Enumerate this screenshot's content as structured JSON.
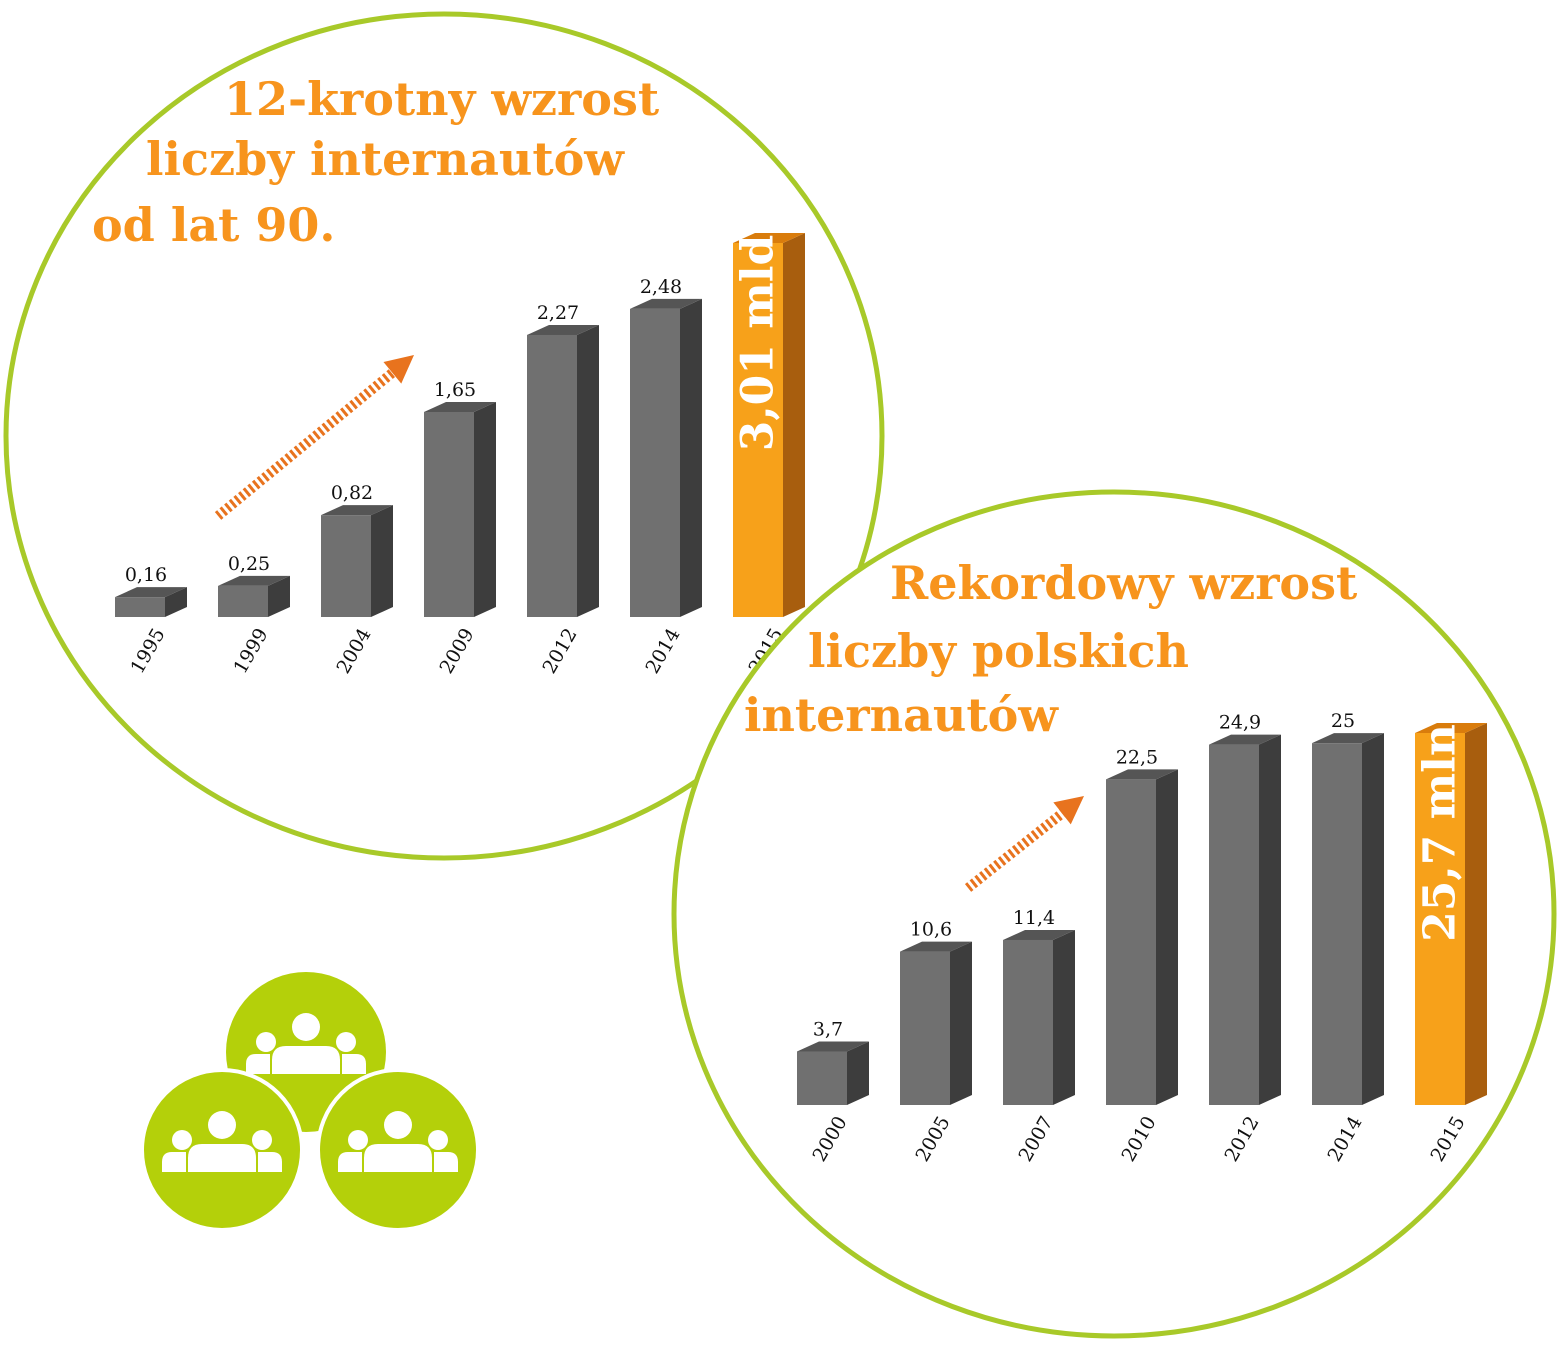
{
  "colors": {
    "ring": "#a8c929",
    "title": "#f7941d",
    "bar_front": "#707070",
    "bar_top": "#555555",
    "bar_side": "#3d3d3d",
    "highlight_front": "#f7a11a",
    "highlight_top": "#d97c0c",
    "highlight_side": "#a85e0e",
    "arrow": "#e8731e",
    "people_bg": "#b4d00a"
  },
  "decoration": {
    "icon": "people-group-icon"
  },
  "chart_data": [
    {
      "type": "bar",
      "title_lines": [
        "12-krotny wzrost",
        "liczby internautów",
        "od lat 90."
      ],
      "categories": [
        "1995",
        "1999",
        "2004",
        "2009",
        "2012",
        "2014",
        "2015"
      ],
      "values": [
        0.16,
        0.25,
        0.82,
        1.65,
        2.27,
        2.48,
        3.01
      ],
      "value_labels": [
        "0,16",
        "0,25",
        "0,82",
        "1,65",
        "2,27",
        "2,48",
        "3,01 mld"
      ],
      "highlight_index": 6,
      "trend_arrow": true
    },
    {
      "type": "bar",
      "title_lines": [
        "Rekordowy wzrost",
        "liczby polskich",
        "internautów"
      ],
      "categories": [
        "2000",
        "2005",
        "2007",
        "2010",
        "2012",
        "2014",
        "2015"
      ],
      "values": [
        3.7,
        10.6,
        11.4,
        22.5,
        24.9,
        25,
        25.7
      ],
      "value_labels": [
        "3,7",
        "10,6",
        "11,4",
        "22,5",
        "24,9",
        "25",
        "25,7 mln"
      ],
      "highlight_index": 6,
      "trend_arrow": true
    }
  ]
}
